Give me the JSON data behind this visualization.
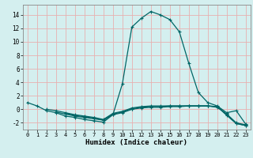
{
  "title": "",
  "xlabel": "Humidex (Indice chaleur)",
  "background_color": "#d4efef",
  "grid_color": "#e8b0b0",
  "line_color": "#006666",
  "xlim": [
    -0.5,
    23.5
  ],
  "ylim": [
    -3.0,
    15.5
  ],
  "yticks": [
    -2,
    0,
    2,
    4,
    6,
    8,
    10,
    12,
    14
  ],
  "xticks": [
    0,
    1,
    2,
    3,
    4,
    5,
    6,
    7,
    8,
    9,
    10,
    11,
    12,
    13,
    14,
    15,
    16,
    17,
    18,
    19,
    20,
    21,
    22,
    23
  ],
  "lines": [
    {
      "x": [
        0,
        1,
        2,
        3,
        4,
        5,
        6,
        7,
        8,
        9,
        10,
        11,
        12,
        13,
        14,
        15,
        16,
        17,
        18,
        19,
        20,
        21,
        22,
        23
      ],
      "y": [
        1.0,
        0.5,
        -0.2,
        -0.5,
        -1.0,
        -1.2,
        -1.5,
        -1.7,
        -1.9,
        -0.8,
        3.8,
        12.2,
        13.5,
        14.5,
        14.0,
        13.3,
        11.5,
        6.8,
        2.5,
        1.0,
        0.5,
        -0.5,
        -0.2,
        -2.2
      ]
    },
    {
      "x": [
        2,
        3,
        4,
        5,
        6,
        7,
        8,
        9,
        10,
        11,
        12,
        13,
        14,
        15,
        16,
        17,
        18,
        19,
        20,
        21,
        22,
        23
      ],
      "y": [
        0.0,
        -0.2,
        -0.5,
        -0.8,
        -1.0,
        -1.2,
        -1.5,
        -0.6,
        -0.3,
        0.2,
        0.4,
        0.5,
        0.5,
        0.5,
        0.5,
        0.5,
        0.5,
        0.5,
        0.3,
        -0.7,
        -2.0,
        -2.3
      ]
    },
    {
      "x": [
        3,
        4,
        5,
        6,
        7,
        8,
        9,
        10,
        11,
        12,
        13,
        14,
        15,
        16,
        17,
        18,
        19,
        20,
        21,
        22,
        23
      ],
      "y": [
        -0.4,
        -0.7,
        -1.0,
        -1.2,
        -1.4,
        -1.6,
        -0.7,
        -0.4,
        0.1,
        0.3,
        0.4,
        0.4,
        0.5,
        0.5,
        0.5,
        0.5,
        0.5,
        0.4,
        -0.8,
        -2.1,
        -2.4
      ]
    },
    {
      "x": [
        4,
        5,
        6,
        7,
        8,
        9,
        10,
        11,
        12,
        13,
        14,
        15,
        16,
        17,
        18,
        19,
        20,
        21,
        22,
        23
      ],
      "y": [
        -0.6,
        -0.9,
        -1.1,
        -1.3,
        -1.6,
        -0.8,
        -0.5,
        0.0,
        0.2,
        0.3,
        0.3,
        0.4,
        0.4,
        0.5,
        0.5,
        0.5,
        0.4,
        -0.9,
        -2.1,
        -2.4
      ]
    }
  ]
}
